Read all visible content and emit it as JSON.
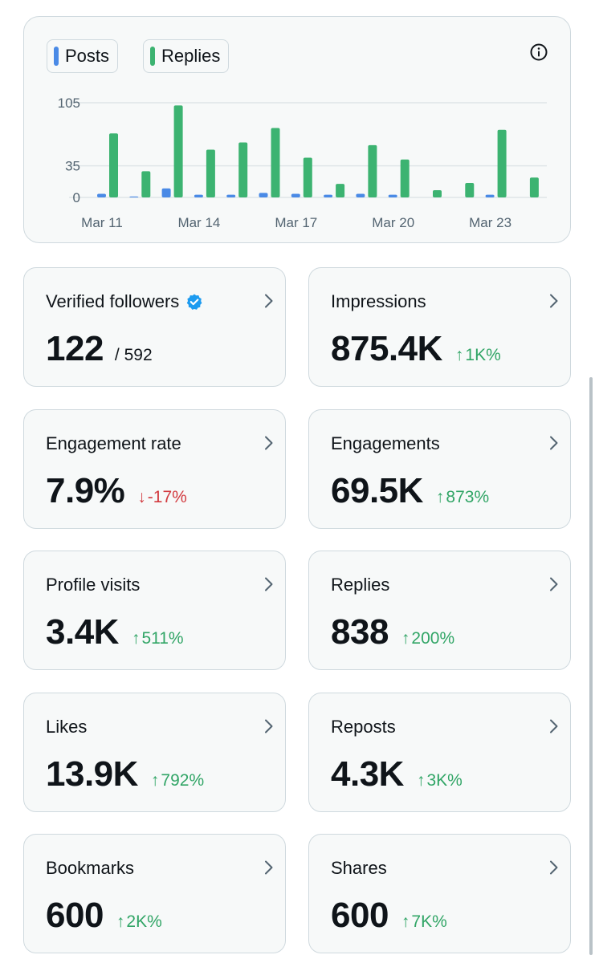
{
  "chart_data": {
    "type": "bar",
    "legend": [
      "Posts",
      "Replies"
    ],
    "colors": {
      "posts": "#4a8ae6",
      "replies": "#3cb371"
    },
    "categories": [
      "Mar 11",
      "Mar 12",
      "Mar 13",
      "Mar 14",
      "Mar 15",
      "Mar 16",
      "Mar 17",
      "Mar 18",
      "Mar 19",
      "Mar 20",
      "Mar 21",
      "Mar 22",
      "Mar 23",
      "Mar 24"
    ],
    "x_tick_labels": [
      "Mar 11",
      "Mar 14",
      "Mar 17",
      "Mar 20",
      "Mar 23"
    ],
    "y_tick_labels": [
      "105",
      "35",
      "0"
    ],
    "y_ticks": [
      105,
      35,
      0
    ],
    "ylim": [
      0,
      105
    ],
    "series": [
      {
        "name": "Posts",
        "values": [
          4,
          1,
          10,
          3,
          3,
          5,
          4,
          3,
          4,
          3,
          0,
          0,
          3,
          0
        ]
      },
      {
        "name": "Replies",
        "values": [
          71,
          29,
          102,
          53,
          61,
          77,
          44,
          15,
          58,
          42,
          8,
          16,
          75,
          22
        ]
      }
    ]
  },
  "legend": {
    "posts_label": "Posts",
    "replies_label": "Replies"
  },
  "icons": {
    "info": "info-icon",
    "verified": "verified-badge-icon",
    "chevron": "chevron-right-icon"
  },
  "stats": [
    {
      "key": "verified-followers",
      "title": "Verified followers",
      "value": "122",
      "sub": "/ 592",
      "verified": true
    },
    {
      "key": "impressions",
      "title": "Impressions",
      "value": "875.4K",
      "direction": "up",
      "arrow": "↑",
      "change": "1K%"
    },
    {
      "key": "engagement-rate",
      "title": "Engagement rate",
      "value": "7.9%",
      "direction": "down",
      "arrow": "↓",
      "change": "-17%"
    },
    {
      "key": "engagements",
      "title": "Engagements",
      "value": "69.5K",
      "direction": "up",
      "arrow": "↑",
      "change": "873%"
    },
    {
      "key": "profile-visits",
      "title": "Profile visits",
      "value": "3.4K",
      "direction": "up",
      "arrow": "↑",
      "change": "511%"
    },
    {
      "key": "replies",
      "title": "Replies",
      "value": "838",
      "direction": "up",
      "arrow": "↑",
      "change": "200%"
    },
    {
      "key": "likes",
      "title": "Likes",
      "value": "13.9K",
      "direction": "up",
      "arrow": "↑",
      "change": "792%"
    },
    {
      "key": "reposts",
      "title": "Reposts",
      "value": "4.3K",
      "direction": "up",
      "arrow": "↑",
      "change": "3K%"
    },
    {
      "key": "bookmarks",
      "title": "Bookmarks",
      "value": "600",
      "direction": "up",
      "arrow": "↑",
      "change": "2K%"
    },
    {
      "key": "shares",
      "title": "Shares",
      "value": "600",
      "direction": "up",
      "arrow": "↑",
      "change": "7K%"
    }
  ]
}
